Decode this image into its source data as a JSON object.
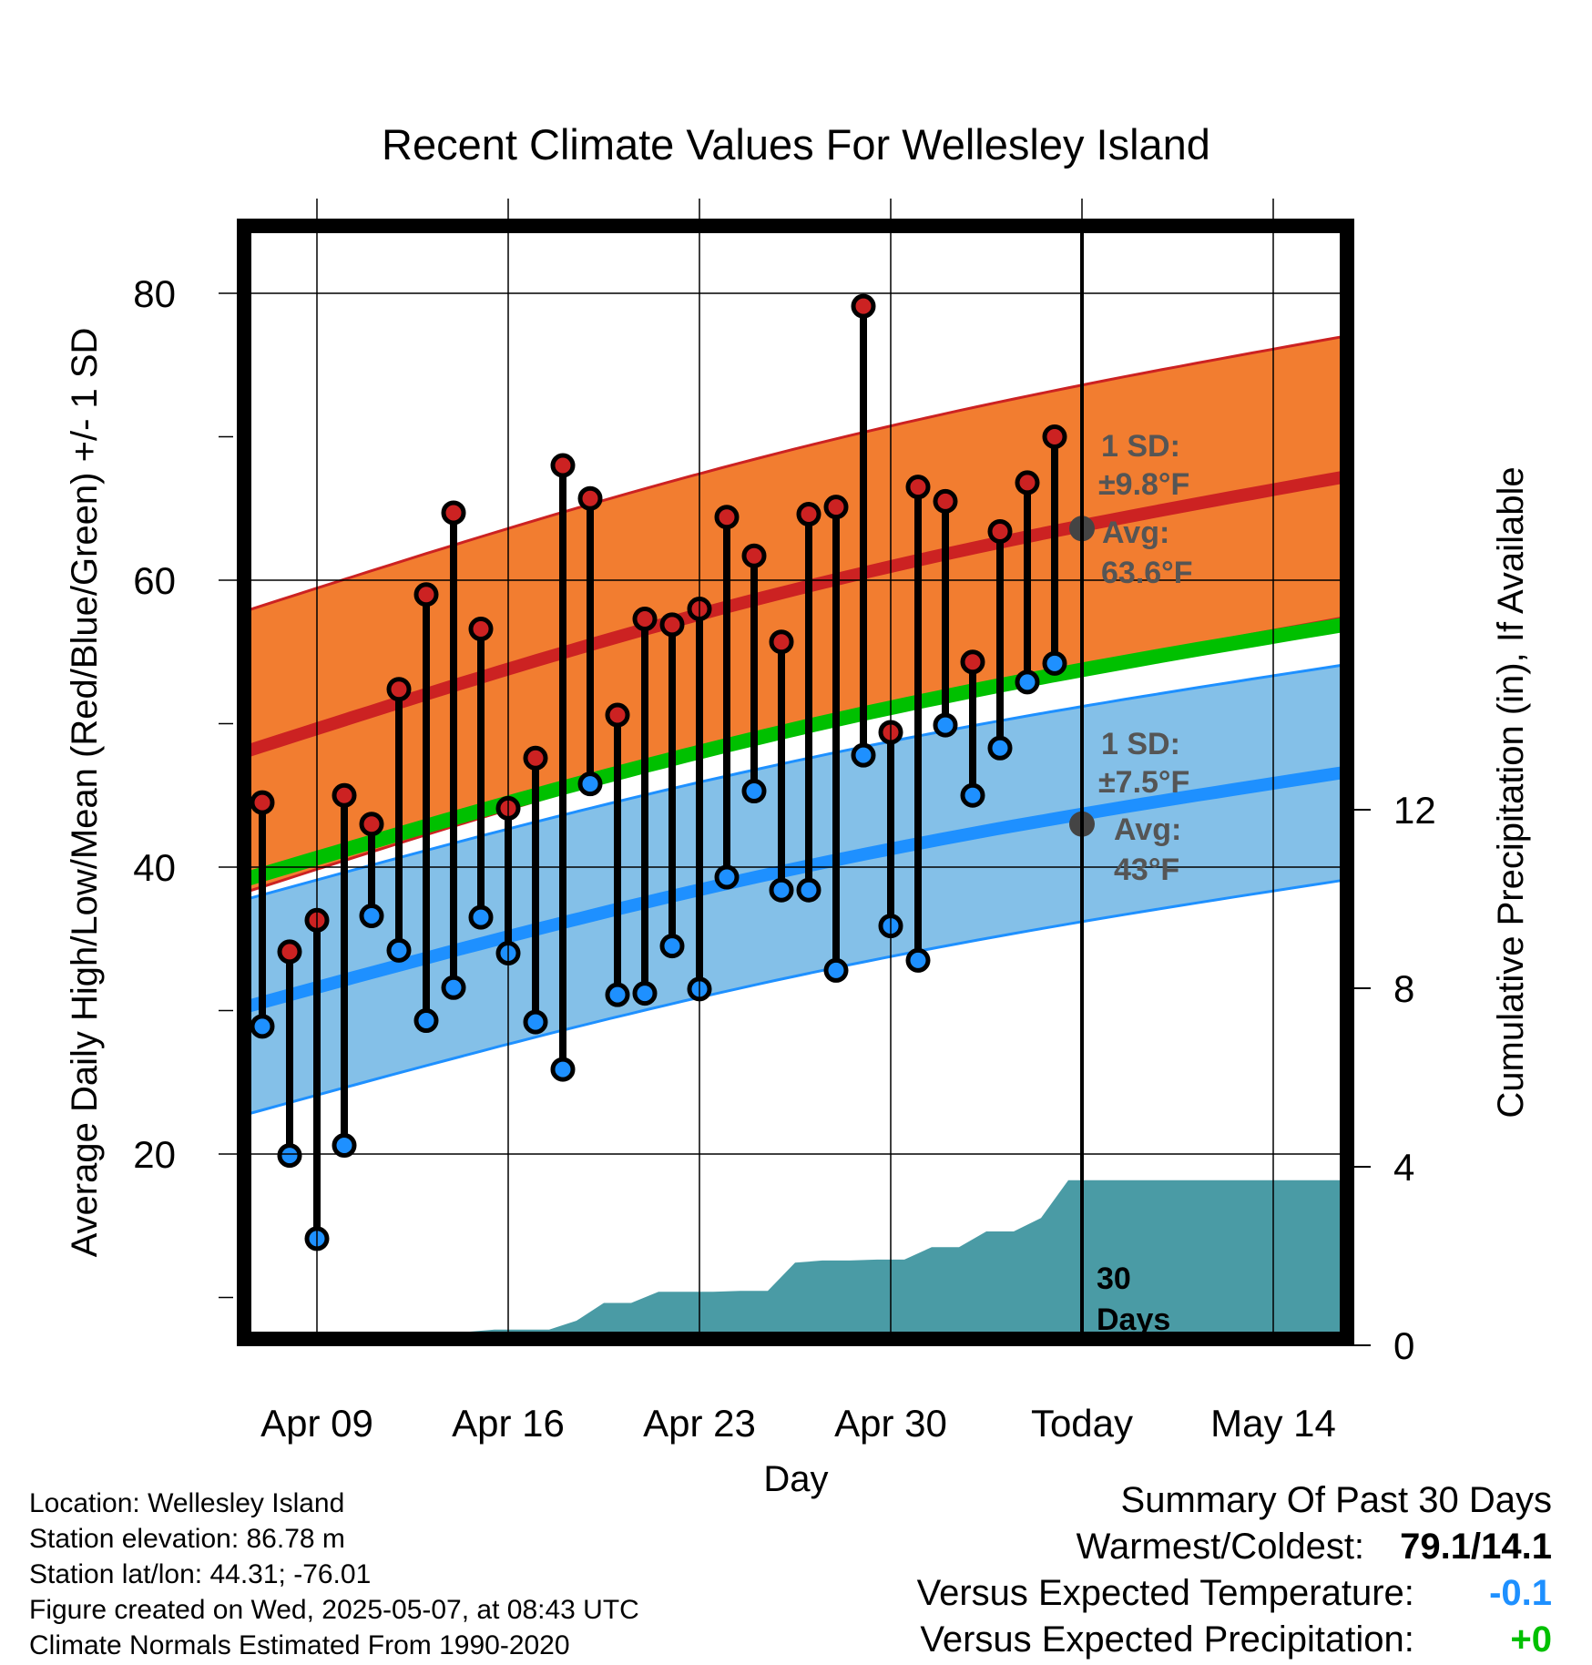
{
  "chart_data": {
    "type": "line",
    "title": "Recent Climate Values For Wellesley Island",
    "xlabel": "Day",
    "ylabel": "Average Daily High/Low/Mean (Red/Blue/Green) +/- 1 SD",
    "y2label": "Cumulative Precipitation (in), If Available",
    "x_ticks": [
      "Apr 09",
      "Apr 16",
      "Apr 23",
      "Apr 30",
      "Today",
      "May 14"
    ],
    "x_tick_days": [
      0,
      7,
      14,
      21,
      28,
      35
    ],
    "xlim_days": [
      -2.7,
      37.6
    ],
    "ylim": [
      7,
      86
    ],
    "y_ticks": [
      20,
      40,
      60,
      80
    ],
    "y_minor_ticks": [
      10,
      30,
      50,
      70
    ],
    "y2lim": [
      0,
      22.3
    ],
    "y2_ticks": [
      0,
      4,
      8,
      12
    ],
    "today_day": 28,
    "days": [
      -2,
      -1,
      0,
      1,
      2,
      3,
      4,
      5,
      6,
      7,
      8,
      9,
      10,
      11,
      12,
      13,
      14,
      15,
      16,
      17,
      18,
      19,
      20,
      21,
      22,
      23,
      24,
      25,
      26,
      27
    ],
    "highs": [
      44.5,
      34.1,
      36.3,
      45.0,
      43.0,
      52.4,
      59.0,
      64.7,
      56.6,
      44.1,
      47.6,
      68.0,
      65.7,
      50.6,
      57.3,
      56.9,
      58.0,
      64.4,
      61.7,
      55.7,
      64.6,
      65.1,
      79.1,
      49.4,
      66.5,
      65.5,
      54.3,
      63.4,
      66.8,
      70.0
    ],
    "lows": [
      28.9,
      19.9,
      14.1,
      20.6,
      36.6,
      34.2,
      29.3,
      31.6,
      36.5,
      34.0,
      29.2,
      25.9,
      45.8,
      31.1,
      31.2,
      34.5,
      31.5,
      39.3,
      45.3,
      38.4,
      38.4,
      32.8,
      47.8,
      35.9,
      33.5,
      49.9,
      45.0,
      48.3,
      52.9,
      54.2
    ],
    "series": [
      {
        "name": "High",
        "color": "#cc2222",
        "band_color": "#f27d30",
        "mean_start": 48.0,
        "mean_end": 67.2,
        "sd": 9.8,
        "marker_day": 28,
        "marker_value": 63.6,
        "sd_label": "1 SD:",
        "sd_value": "±9.8°F",
        "avg_label": "Avg:",
        "avg_value": "63.6°F"
      },
      {
        "name": "Low",
        "color": "#1e90ff",
        "band_color": "#84c0e8",
        "mean_start": 30.2,
        "mean_end": 46.6,
        "sd": 7.5,
        "marker_day": 28,
        "marker_value": 43.0,
        "sd_label": "1 SD:",
        "sd_value": "±7.5°F",
        "avg_label": "Avg:",
        "avg_value": "43°F"
      },
      {
        "name": "Mean",
        "color": "#00c000",
        "mean_start": 39.1,
        "mean_end": 56.9
      }
    ],
    "precip_days": [
      -0.5,
      0.5,
      1.5,
      2.5,
      3.5,
      4.5,
      5.5,
      6.5,
      7.5,
      8.5,
      9.5,
      10.5,
      11.5,
      12.5,
      13.5,
      14.5,
      15.5,
      16.5,
      17.5,
      18.5,
      19.5,
      20.5,
      21.5,
      22.5,
      23.5,
      24.5,
      25.5,
      26.5,
      27.5,
      28.5,
      37.6
    ],
    "precip_cum": [
      0.0,
      0.1,
      0.3,
      0.3,
      0.3,
      0.3,
      0.3,
      0.35,
      0.35,
      0.35,
      0.55,
      0.95,
      0.95,
      1.2,
      1.2,
      1.2,
      1.22,
      1.22,
      1.85,
      1.9,
      1.9,
      1.92,
      1.92,
      2.2,
      2.2,
      2.55,
      2.55,
      2.85,
      3.7,
      3.7,
      3.7
    ],
    "period_label_num": "30",
    "period_label_unit": "Days",
    "grid": true
  },
  "station": {
    "location": "Location: Wellesley Island",
    "elevation": "Station elevation: 86.78 m",
    "latlon": "Station lat/lon: 44.31; -76.01",
    "created": "Figure created on Wed, 2025-05-07, at 08:43 UTC",
    "normals": "Climate Normals Estimated From 1990-2020"
  },
  "summary": {
    "heading": "Summary Of Past 30 Days",
    "warm_cold_label": "Warmest/Coldest:",
    "warm_cold_value": "79.1/14.1",
    "temp_label": "Versus Expected Temperature:",
    "temp_value": "-0.1",
    "temp_color": "#1e90ff",
    "precip_label": "Versus Expected Precipitation:",
    "precip_value": "+0",
    "precip_color": "#00c000"
  }
}
